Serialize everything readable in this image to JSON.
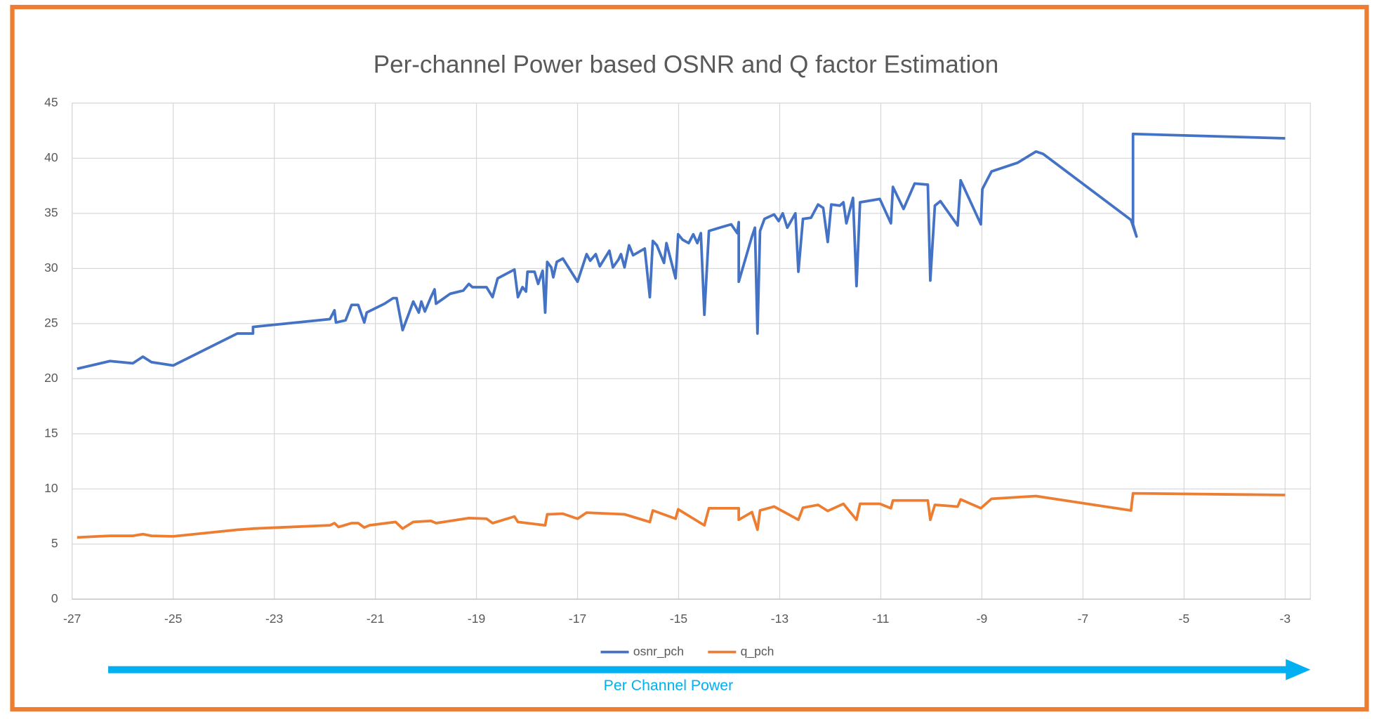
{
  "chart_data": {
    "type": "line",
    "title": "Per-channel Power based OSNR and Q factor Estimation",
    "x_label": "Per Channel Power",
    "xlim": [
      -27,
      -2.5
    ],
    "ylim": [
      0,
      45
    ],
    "xticks": [
      -27,
      -25,
      -23,
      -21,
      -19,
      -17,
      -15,
      -13,
      -11,
      -9,
      -7,
      -5,
      -3
    ],
    "yticks": [
      0,
      5,
      10,
      15,
      20,
      25,
      30,
      35,
      40,
      45
    ],
    "grid": true,
    "legend": "bottom",
    "border_color": "#ed7d31",
    "x_label_color": "#00b0f0",
    "series": [
      {
        "name": "osnr_pch",
        "color": "#4472c4",
        "x": [
          -26.9,
          -26.25,
          -25.8,
          -25.6,
          -25.43,
          -25,
          -23.73,
          -23.42,
          -23.42,
          -21.9,
          -21.81,
          -21.78,
          -21.59,
          -21.47,
          -21.34,
          -21.22,
          -21.17,
          -20.82,
          -20.65,
          -20.58,
          -20.46,
          -20.33,
          -20.25,
          -20.14,
          -20.09,
          -20.02,
          -19.9,
          -19.83,
          -19.8,
          -19.52,
          -19.26,
          -19.15,
          -19.08,
          -18.8,
          -18.68,
          -18.58,
          -18.25,
          -18.18,
          -18.09,
          -18.02,
          -17.99,
          -17.85,
          -17.78,
          -17.69,
          -17.64,
          -17.6,
          -17.52,
          -17.48,
          -17.41,
          -17.29,
          -17.0,
          -16.82,
          -16.75,
          -16.64,
          -16.56,
          -16.37,
          -16.3,
          -16.19,
          -16.14,
          -16.07,
          -15.98,
          -15.9,
          -15.67,
          -15.57,
          -15.51,
          -15.43,
          -15.29,
          -15.24,
          -15.06,
          -15.01,
          -14.92,
          -14.8,
          -14.71,
          -14.63,
          -14.56,
          -14.49,
          -14.4,
          -14.19,
          -13.96,
          -13.84,
          -13.81,
          -13.81,
          -13.55,
          -13.49,
          -13.44,
          -13.39,
          -13.3,
          -13.11,
          -13.02,
          -12.94,
          -12.85,
          -12.69,
          -12.63,
          -12.54,
          -12.38,
          -12.24,
          -12.14,
          -12.05,
          -11.98,
          -11.81,
          -11.74,
          -11.68,
          -11.55,
          -11.48,
          -11.41,
          -11.02,
          -10.8,
          -10.76,
          -10.55,
          -10.33,
          -10.07,
          -10.02,
          -9.93,
          -9.82,
          -9.48,
          -9.42,
          -9.02,
          -8.99,
          -8.81,
          -8.29,
          -7.93,
          -7.79,
          -6.05,
          -5.94,
          -6.01,
          -6.01,
          -3.0
        ],
        "values": [
          20.9,
          21.6,
          21.4,
          22.0,
          21.5,
          21.2,
          24.1,
          24.1,
          24.7,
          25.4,
          26.2,
          25.1,
          25.3,
          26.7,
          26.7,
          25.1,
          26.0,
          26.8,
          27.3,
          27.3,
          24.4,
          26.0,
          27.0,
          26.0,
          27.0,
          26.1,
          27.4,
          28.1,
          26.8,
          27.7,
          28.0,
          28.6,
          28.3,
          28.3,
          27.4,
          29.1,
          29.9,
          27.4,
          28.3,
          27.9,
          29.7,
          29.7,
          28.6,
          29.8,
          26.0,
          30.6,
          30.1,
          29.2,
          30.6,
          30.9,
          28.8,
          31.3,
          30.7,
          31.3,
          30.2,
          31.6,
          30.1,
          30.8,
          31.3,
          30.1,
          32.1,
          31.2,
          31.8,
          27.4,
          32.5,
          32.1,
          30.5,
          32.3,
          29.1,
          33.1,
          32.6,
          32.3,
          33.1,
          32.3,
          33.2,
          25.8,
          33.4,
          33.7,
          34.0,
          33.2,
          34.2,
          28.8,
          32.9,
          33.7,
          24.1,
          33.4,
          34.5,
          34.9,
          34.3,
          35.0,
          33.7,
          35.0,
          29.7,
          34.5,
          34.6,
          35.8,
          35.5,
          32.4,
          35.8,
          35.7,
          36.0,
          34.1,
          36.4,
          28.4,
          36.0,
          36.3,
          34.1,
          37.4,
          35.4,
          37.7,
          37.6,
          28.9,
          35.7,
          36.1,
          33.9,
          38.0,
          34.0,
          37.2,
          38.8,
          39.6,
          40.6,
          40.4,
          34.4,
          32.9,
          34.0,
          42.2,
          41.8
        ]
      },
      {
        "name": "q_pch",
        "color": "#ed7d31",
        "x": [
          -26.9,
          -26.25,
          -25.8,
          -25.6,
          -25.43,
          -25,
          -23.73,
          -23.42,
          -21.9,
          -21.81,
          -21.73,
          -21.47,
          -21.34,
          -21.22,
          -21.12,
          -20.6,
          -20.46,
          -20.25,
          -19.9,
          -19.8,
          -19.15,
          -18.8,
          -18.68,
          -18.25,
          -18.18,
          -17.64,
          -17.6,
          -17.29,
          -17.0,
          -16.82,
          -16.07,
          -15.57,
          -15.51,
          -15.06,
          -15.01,
          -14.49,
          -14.4,
          -13.81,
          -13.81,
          -13.55,
          -13.44,
          -13.39,
          -13.11,
          -12.63,
          -12.54,
          -12.24,
          -12.05,
          -11.74,
          -11.48,
          -11.41,
          -11.02,
          -10.8,
          -10.76,
          -10.07,
          -10.02,
          -9.93,
          -9.48,
          -9.42,
          -9.02,
          -8.81,
          -7.93,
          -6.05,
          -6.01,
          -3.0
        ],
        "values": [
          5.6,
          5.75,
          5.75,
          5.9,
          5.75,
          5.7,
          6.3,
          6.4,
          6.7,
          6.9,
          6.55,
          6.9,
          6.9,
          6.5,
          6.7,
          7.0,
          6.4,
          7.0,
          7.1,
          6.9,
          7.35,
          7.3,
          6.9,
          7.5,
          7.0,
          6.7,
          7.7,
          7.75,
          7.3,
          7.85,
          7.7,
          7.0,
          8.05,
          7.3,
          8.15,
          6.7,
          8.25,
          8.25,
          7.2,
          7.9,
          6.3,
          8.05,
          8.4,
          7.2,
          8.3,
          8.55,
          8.0,
          8.65,
          7.2,
          8.65,
          8.65,
          8.25,
          8.95,
          8.95,
          7.2,
          8.55,
          8.4,
          9.05,
          8.25,
          9.1,
          9.35,
          8.05,
          9.6,
          9.45
        ]
      }
    ]
  }
}
